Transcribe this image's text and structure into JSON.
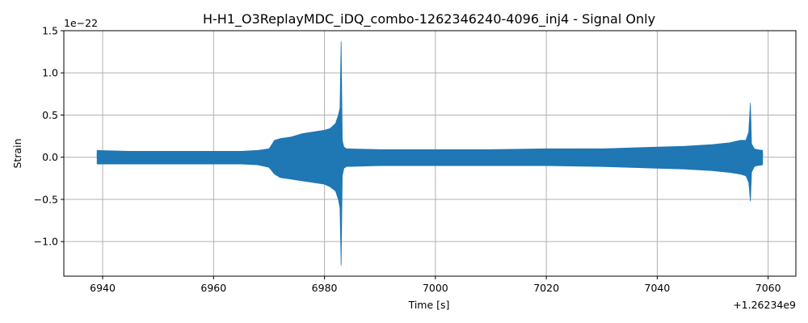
{
  "chart_data": {
    "type": "line",
    "title": "H-H1_O3ReplayMDC_iDQ_combo-1262346240-4096_inj4 - Signal Only",
    "xlabel": "Time [s]",
    "ylabel": "Strain",
    "x_offset_label": "+1.26234e9",
    "y_scale_label": "1e−22",
    "xlim": [
      6933,
      7065
    ],
    "ylim": [
      -1.41,
      1.5
    ],
    "xticks": [
      6940,
      6960,
      6980,
      7000,
      7020,
      7040,
      7060
    ],
    "xtick_labels": [
      "6940",
      "6960",
      "6980",
      "7000",
      "7020",
      "7040",
      "7060"
    ],
    "yticks": [
      1.5,
      1.0,
      0.5,
      0.0,
      -0.5,
      -1.0
    ],
    "ytick_labels": [
      "1.5",
      "1.0",
      "0.5",
      "0.0",
      "−0.5",
      "−1.0"
    ],
    "grid": true,
    "line_color": "#1f77b4",
    "series": [
      {
        "x": [
          6939,
          6945,
          6950,
          6955,
          6960,
          6965,
          6968,
          6970,
          6971,
          6972,
          6974,
          6976,
          6978,
          6980,
          6981,
          6982,
          6982.5,
          6982.8,
          6983,
          6983.2,
          6983.5,
          6984,
          6990,
          7000,
          7010,
          7020,
          7030,
          7040,
          7045,
          7050,
          7053,
          7055,
          7056,
          7056.5,
          7056.8,
          7057,
          7057.5,
          7058,
          7059
        ],
        "upper": [
          0.08,
          0.07,
          0.07,
          0.07,
          0.07,
          0.07,
          0.08,
          0.1,
          0.2,
          0.22,
          0.24,
          0.28,
          0.3,
          0.32,
          0.34,
          0.4,
          0.5,
          0.58,
          1.37,
          0.2,
          0.12,
          0.1,
          0.09,
          0.09,
          0.09,
          0.1,
          0.1,
          0.12,
          0.13,
          0.15,
          0.17,
          0.2,
          0.2,
          0.3,
          0.64,
          0.16,
          0.1,
          0.09,
          0.08
        ],
        "lower": [
          -0.08,
          -0.08,
          -0.08,
          -0.08,
          -0.08,
          -0.08,
          -0.09,
          -0.12,
          -0.2,
          -0.24,
          -0.26,
          -0.28,
          -0.3,
          -0.32,
          -0.35,
          -0.4,
          -0.5,
          -0.6,
          -1.28,
          -0.22,
          -0.13,
          -0.11,
          -0.1,
          -0.1,
          -0.1,
          -0.1,
          -0.11,
          -0.13,
          -0.14,
          -0.16,
          -0.18,
          -0.2,
          -0.22,
          -0.3,
          -0.52,
          -0.18,
          -0.11,
          -0.1,
          -0.09
        ]
      }
    ]
  }
}
